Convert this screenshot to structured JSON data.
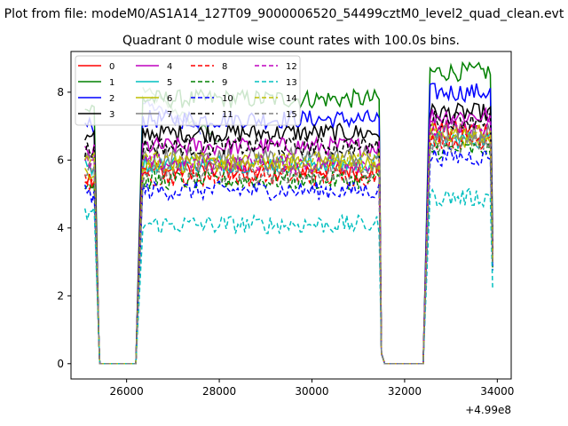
{
  "chart_data": {
    "type": "line",
    "suptitle": "Plot from file: modeM0/AS1A14_127T09_9000006520_54499cztM0_level2_quad_clean.evt",
    "title": "Quadrant 0 module wise count rates with 100.0s bins.",
    "xlabel": "",
    "ylabel": "",
    "x_offset_label": "+4.99e8",
    "xlim": [
      24800,
      34300
    ],
    "ylim": [
      -0.45,
      9.2
    ],
    "x_ticks": [
      26000,
      28000,
      30000,
      32000,
      34000
    ],
    "y_ticks": [
      0,
      2,
      4,
      6,
      8
    ],
    "grid": false,
    "legend_position": "top-left",
    "legend_columns": 4,
    "segments": [
      {
        "start": 25100,
        "end": 25300
      },
      {
        "start": 26350,
        "end": 31450
      },
      {
        "start": 32550,
        "end": 33850
      }
    ],
    "gaps": [
      {
        "from": 25300,
        "drop_end": 25400,
        "rise_start": 26200,
        "to": 26350
      },
      {
        "from": 31450,
        "drop_end": 31550,
        "rise_start": 32400,
        "to": 32550
      }
    ],
    "series": [
      {
        "name": "0",
        "color": "#ff0000",
        "dash": "solid",
        "level1": 5.5,
        "level2": 5.7,
        "level3": 6.9
      },
      {
        "name": "1",
        "color": "#008000",
        "dash": "solid",
        "level1": 7.5,
        "level2": 7.8,
        "level3": 8.6
      },
      {
        "name": "2",
        "color": "#0000ff",
        "dash": "solid",
        "level1": 7.0,
        "level2": 7.2,
        "level3": 8.0
      },
      {
        "name": "3",
        "color": "#000000",
        "dash": "solid",
        "level1": 6.6,
        "level2": 6.8,
        "level3": 7.4
      },
      {
        "name": "4",
        "color": "#bf00bf",
        "dash": "solid",
        "level1": 6.2,
        "level2": 6.4,
        "level3": 7.3
      },
      {
        "name": "5",
        "color": "#00bfbf",
        "dash": "solid",
        "level1": 5.8,
        "level2": 5.9,
        "level3": 6.6
      },
      {
        "name": "6",
        "color": "#bfbf00",
        "dash": "solid",
        "level1": 5.7,
        "level2": 5.9,
        "level3": 6.6
      },
      {
        "name": "7",
        "color": "#808080",
        "dash": "solid",
        "level1": 6.0,
        "level2": 6.1,
        "level3": 6.8
      },
      {
        "name": "8",
        "color": "#ff0000",
        "dash": "dashed",
        "level1": 5.4,
        "level2": 5.5,
        "level3": 6.6
      },
      {
        "name": "9",
        "color": "#008000",
        "dash": "dashed",
        "level1": 5.3,
        "level2": 5.4,
        "level3": 6.3
      },
      {
        "name": "10",
        "color": "#0000ff",
        "dash": "dashed",
        "level1": 5.0,
        "level2": 5.1,
        "level3": 6.1
      },
      {
        "name": "11",
        "color": "#000000",
        "dash": "dashed",
        "level1": 6.3,
        "level2": 6.4,
        "level3": 7.2
      },
      {
        "name": "12",
        "color": "#bf00bf",
        "dash": "dashed",
        "level1": 5.9,
        "level2": 5.9,
        "level3": 6.9
      },
      {
        "name": "13",
        "color": "#00bfbf",
        "dash": "dashed",
        "level1": 4.4,
        "level2": 4.1,
        "level3": 4.9
      },
      {
        "name": "14",
        "color": "#bfbf00",
        "dash": "dashed",
        "level1": 6.1,
        "level2": 6.0,
        "level3": 6.8
      },
      {
        "name": "15",
        "color": "#808080",
        "dash": "dashed",
        "level1": 5.7,
        "level2": 5.6,
        "level3": 6.5
      }
    ],
    "overlay_lines": [
      {
        "color": "#7fbf7f",
        "level": 8.1,
        "segment": 1,
        "fade_to": 6.6,
        "to_x": 28000
      },
      {
        "color": "#7f7fff",
        "level": 7.7,
        "segment": 1,
        "fade_to": 6.9,
        "to_x": 27600
      }
    ]
  }
}
